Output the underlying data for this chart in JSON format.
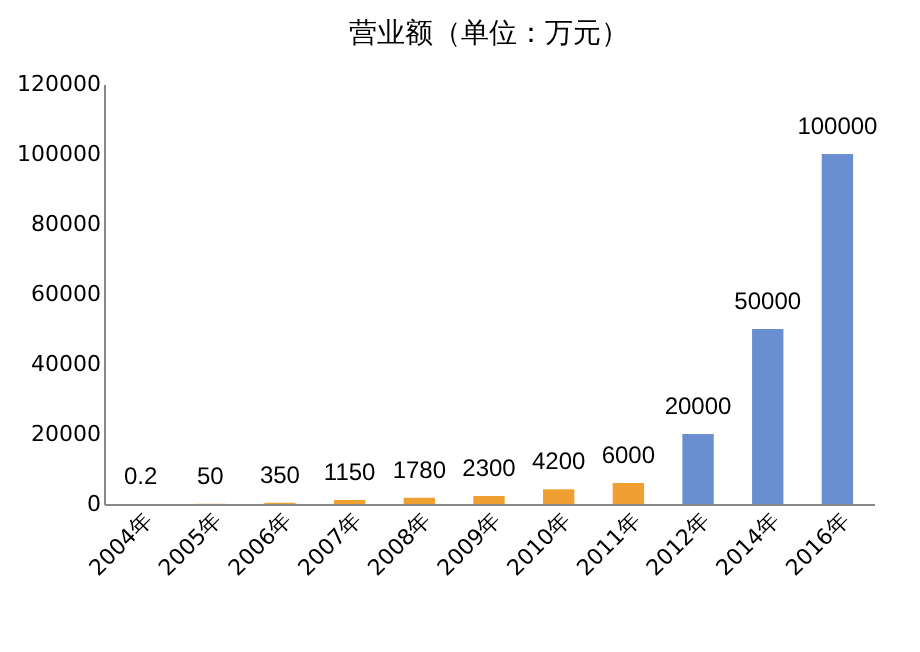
{
  "chart_data": {
    "type": "bar",
    "title": "营业额（单位：万元）",
    "categories": [
      "2004年",
      "2005年",
      "2006年",
      "2007年",
      "2008年",
      "2009年",
      "2010年",
      "2011年",
      "2012年",
      "2014年",
      "2016年"
    ],
    "values": [
      0.2,
      50,
      350,
      1150,
      1780,
      2300,
      4200,
      6000,
      20000,
      50000,
      100000
    ],
    "colors": [
      "#f0a030",
      "#f0a030",
      "#f0a030",
      "#f0a030",
      "#f0a030",
      "#f0a030",
      "#f0a030",
      "#f0a030",
      "#6a8fd0",
      "#6a8fd0",
      "#6a8fd0"
    ],
    "ylim": [
      0,
      120000
    ],
    "yticks": [
      0,
      20000,
      40000,
      60000,
      80000,
      100000,
      120000
    ],
    "data_labels": true,
    "grid": false
  }
}
